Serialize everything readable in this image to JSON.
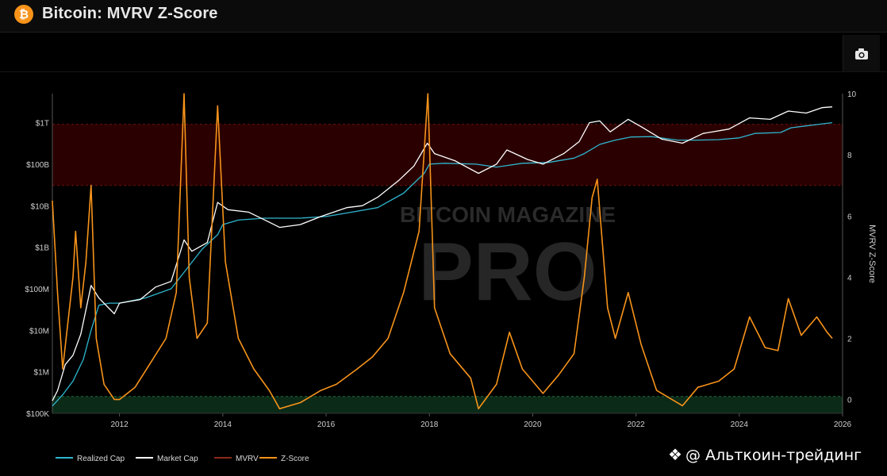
{
  "header": {
    "title": "Bitcoin: MVRV Z-Score",
    "logo_icon": "bitcoin-icon",
    "logo_glyph": "₿"
  },
  "toolbar": {
    "camera_icon": "camera-icon"
  },
  "watermark": {
    "line1": "BITCOIN MAGAZINE",
    "line2": "PRO"
  },
  "credit": {
    "icon": "binance-diamond-icon",
    "text": "@ Альткоин-трейдинг"
  },
  "colors": {
    "realized_cap": "#2fb6cf",
    "market_cap": "#ffffff",
    "mvrv": "#8b2a1a",
    "z_score": "#f7931a",
    "red_band": "#2a0000",
    "green_band": "#0c2a18"
  },
  "chart_data": {
    "type": "line",
    "title": "Bitcoin: MVRV Z-Score",
    "x_ticks": [
      "2012",
      "2014",
      "2016",
      "2018",
      "2020",
      "2022",
      "2024",
      "2026"
    ],
    "xlim": [
      2010.7,
      2026.0
    ],
    "y_left": {
      "scale": "log",
      "ticks": [
        "$100K",
        "$1M",
        "$10M",
        "$100M",
        "$1B",
        "$10B",
        "$100B",
        "$1T"
      ],
      "tick_values": [
        100000,
        1000000,
        10000000,
        100000000,
        1000000000,
        10000000000,
        100000000000,
        1000000000000
      ],
      "lim": [
        100000,
        5000000000000
      ]
    },
    "y_right": {
      "label": "MVRV Z-Score",
      "ticks": [
        "0",
        "2",
        "4",
        "6",
        "8",
        "10"
      ],
      "tick_values": [
        0,
        2,
        4,
        6,
        8,
        10
      ],
      "lim": [
        -0.45,
        10
      ]
    },
    "bands": [
      {
        "axis": "right",
        "from": 7.0,
        "to": 9.0,
        "color": "#2a0000"
      },
      {
        "axis": "right",
        "from": -0.45,
        "to": 0.1,
        "color": "#0c2a18"
      }
    ],
    "legend": [
      "Realized Cap",
      "Market Cap",
      "MVRV",
      "Z-Score"
    ],
    "legend_position": "bottom-left",
    "series": [
      {
        "name": "Realized Cap",
        "axis": "left",
        "color": "#2fb6cf",
        "points": [
          [
            2010.7,
            150000
          ],
          [
            2010.9,
            280000
          ],
          [
            2011.1,
            600000
          ],
          [
            2011.3,
            2000000
          ],
          [
            2011.45,
            10000000
          ],
          [
            2011.6,
            40000000
          ],
          [
            2011.8,
            45000000
          ],
          [
            2012.0,
            45000000
          ],
          [
            2012.5,
            60000000
          ],
          [
            2013.0,
            100000000
          ],
          [
            2013.3,
            300000000
          ],
          [
            2013.6,
            900000000
          ],
          [
            2013.9,
            2000000000
          ],
          [
            2014.0,
            3500000000
          ],
          [
            2014.3,
            4500000000
          ],
          [
            2014.8,
            5000000000
          ],
          [
            2015.5,
            5000000000
          ],
          [
            2016.0,
            5500000000
          ],
          [
            2016.5,
            7000000000
          ],
          [
            2017.0,
            9000000000
          ],
          [
            2017.5,
            20000000000
          ],
          [
            2017.9,
            60000000000
          ],
          [
            2018.0,
            100000000000
          ],
          [
            2018.3,
            105000000000
          ],
          [
            2018.9,
            100000000000
          ],
          [
            2019.3,
            85000000000
          ],
          [
            2019.8,
            105000000000
          ],
          [
            2020.3,
            110000000000
          ],
          [
            2020.8,
            140000000000
          ],
          [
            2021.0,
            180000000000
          ],
          [
            2021.3,
            300000000000
          ],
          [
            2021.6,
            380000000000
          ],
          [
            2021.9,
            450000000000
          ],
          [
            2022.3,
            460000000000
          ],
          [
            2022.8,
            380000000000
          ],
          [
            2023.2,
            380000000000
          ],
          [
            2023.6,
            390000000000
          ],
          [
            2024.0,
            430000000000
          ],
          [
            2024.3,
            550000000000
          ],
          [
            2024.8,
            580000000000
          ],
          [
            2025.0,
            750000000000
          ],
          [
            2025.5,
            900000000000
          ],
          [
            2025.8,
            1000000000000
          ]
        ]
      },
      {
        "name": "Market Cap",
        "axis": "left",
        "color": "#ffffff",
        "points": [
          [
            2010.7,
            200000
          ],
          [
            2010.8,
            350000
          ],
          [
            2010.95,
            1500000
          ],
          [
            2011.1,
            2500000
          ],
          [
            2011.25,
            8000000
          ],
          [
            2011.45,
            120000000
          ],
          [
            2011.6,
            60000000
          ],
          [
            2011.9,
            25000000
          ],
          [
            2012.0,
            45000000
          ],
          [
            2012.4,
            55000000
          ],
          [
            2012.7,
            110000000
          ],
          [
            2013.0,
            150000000
          ],
          [
            2013.25,
            1500000000
          ],
          [
            2013.4,
            800000000
          ],
          [
            2013.7,
            1300000000
          ],
          [
            2013.9,
            12000000000
          ],
          [
            2014.1,
            8000000000
          ],
          [
            2014.5,
            7000000000
          ],
          [
            2014.9,
            4000000000
          ],
          [
            2015.1,
            3000000000
          ],
          [
            2015.5,
            3500000000
          ],
          [
            2015.9,
            5500000000
          ],
          [
            2016.4,
            9000000000
          ],
          [
            2016.7,
            10000000000
          ],
          [
            2017.0,
            16000000000
          ],
          [
            2017.4,
            40000000000
          ],
          [
            2017.7,
            90000000000
          ],
          [
            2017.96,
            320000000000
          ],
          [
            2018.1,
            180000000000
          ],
          [
            2018.5,
            120000000000
          ],
          [
            2018.95,
            60000000000
          ],
          [
            2019.3,
            100000000000
          ],
          [
            2019.5,
            220000000000
          ],
          [
            2019.9,
            130000000000
          ],
          [
            2020.2,
            100000000000
          ],
          [
            2020.6,
            180000000000
          ],
          [
            2020.9,
            350000000000
          ],
          [
            2021.1,
            1000000000000
          ],
          [
            2021.3,
            1100000000000
          ],
          [
            2021.5,
            600000000000
          ],
          [
            2021.85,
            1200000000000
          ],
          [
            2022.1,
            800000000000
          ],
          [
            2022.5,
            400000000000
          ],
          [
            2022.9,
            320000000000
          ],
          [
            2023.3,
            550000000000
          ],
          [
            2023.8,
            700000000000
          ],
          [
            2024.2,
            1300000000000
          ],
          [
            2024.6,
            1200000000000
          ],
          [
            2024.95,
            1900000000000
          ],
          [
            2025.3,
            1700000000000
          ],
          [
            2025.6,
            2300000000000
          ],
          [
            2025.8,
            2400000000000
          ]
        ]
      },
      {
        "name": "Z-Score",
        "axis": "right",
        "color": "#f7931a",
        "points": [
          [
            2010.7,
            6.5
          ],
          [
            2010.8,
            3.5
          ],
          [
            2010.9,
            1.0
          ],
          [
            2011.0,
            2.5
          ],
          [
            2011.1,
            4.0
          ],
          [
            2011.15,
            5.5
          ],
          [
            2011.25,
            3.0
          ],
          [
            2011.35,
            4.5
          ],
          [
            2011.45,
            7.0
          ],
          [
            2011.55,
            2.0
          ],
          [
            2011.7,
            0.5
          ],
          [
            2011.9,
            0.0
          ],
          [
            2012.0,
            0.0
          ],
          [
            2012.3,
            0.4
          ],
          [
            2012.6,
            1.2
          ],
          [
            2012.9,
            2.0
          ],
          [
            2013.1,
            3.5
          ],
          [
            2013.25,
            10.0
          ],
          [
            2013.35,
            4.0
          ],
          [
            2013.5,
            2.0
          ],
          [
            2013.7,
            2.5
          ],
          [
            2013.9,
            9.6
          ],
          [
            2014.05,
            4.5
          ],
          [
            2014.3,
            2.0
          ],
          [
            2014.6,
            1.0
          ],
          [
            2014.9,
            0.3
          ],
          [
            2015.1,
            -0.3
          ],
          [
            2015.5,
            -0.1
          ],
          [
            2015.9,
            0.3
          ],
          [
            2016.2,
            0.5
          ],
          [
            2016.6,
            1.0
          ],
          [
            2016.9,
            1.4
          ],
          [
            2017.2,
            2.0
          ],
          [
            2017.5,
            3.5
          ],
          [
            2017.8,
            5.5
          ],
          [
            2017.97,
            10.0
          ],
          [
            2018.1,
            3.0
          ],
          [
            2018.4,
            1.5
          ],
          [
            2018.8,
            0.7
          ],
          [
            2018.95,
            -0.3
          ],
          [
            2019.3,
            0.5
          ],
          [
            2019.55,
            2.2
          ],
          [
            2019.8,
            1.0
          ],
          [
            2020.2,
            0.2
          ],
          [
            2020.5,
            0.8
          ],
          [
            2020.8,
            1.5
          ],
          [
            2021.0,
            4.0
          ],
          [
            2021.15,
            6.6
          ],
          [
            2021.25,
            7.2
          ],
          [
            2021.45,
            3.0
          ],
          [
            2021.6,
            2.0
          ],
          [
            2021.85,
            3.5
          ],
          [
            2022.1,
            1.8
          ],
          [
            2022.4,
            0.3
          ],
          [
            2022.9,
            -0.2
          ],
          [
            2023.2,
            0.4
          ],
          [
            2023.6,
            0.6
          ],
          [
            2023.9,
            1.0
          ],
          [
            2024.2,
            2.7
          ],
          [
            2024.5,
            1.7
          ],
          [
            2024.75,
            1.6
          ],
          [
            2024.95,
            3.3
          ],
          [
            2025.2,
            2.1
          ],
          [
            2025.5,
            2.7
          ],
          [
            2025.7,
            2.2
          ],
          [
            2025.8,
            2.0
          ]
        ]
      }
    ]
  }
}
